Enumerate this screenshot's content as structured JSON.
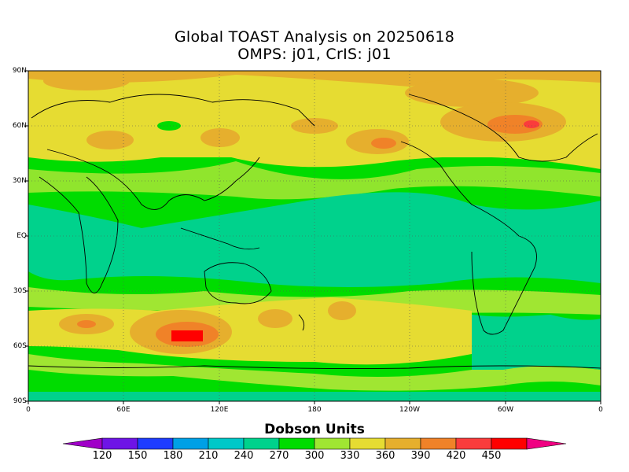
{
  "map": {
    "title": "Global TOAST Analysis on 20250618",
    "subtitle": "OMPS: j01, CrIS: j01",
    "lat_labels": [
      "90N",
      "60N",
      "30N",
      "EQ",
      "30S",
      "60S",
      "90S"
    ],
    "lon_labels": [
      "0",
      "60E",
      "120E",
      "180",
      "120W",
      "60W",
      "0"
    ],
    "colorbar_title": "Dobson Units",
    "colorbar_ticks": [
      "120",
      "150",
      "180",
      "210",
      "240",
      "270",
      "300",
      "330",
      "360",
      "390",
      "420",
      "450"
    ],
    "colorbar_colors": [
      "#a000c8",
      "#6e14e6",
      "#1e3cff",
      "#00a0e6",
      "#00c8c8",
      "#00d28c",
      "#00dc00",
      "#a0e632",
      "#e6dc32",
      "#e6af2d",
      "#f08228",
      "#fa3c3c",
      "#ff0000",
      "#f00082"
    ]
  }
}
